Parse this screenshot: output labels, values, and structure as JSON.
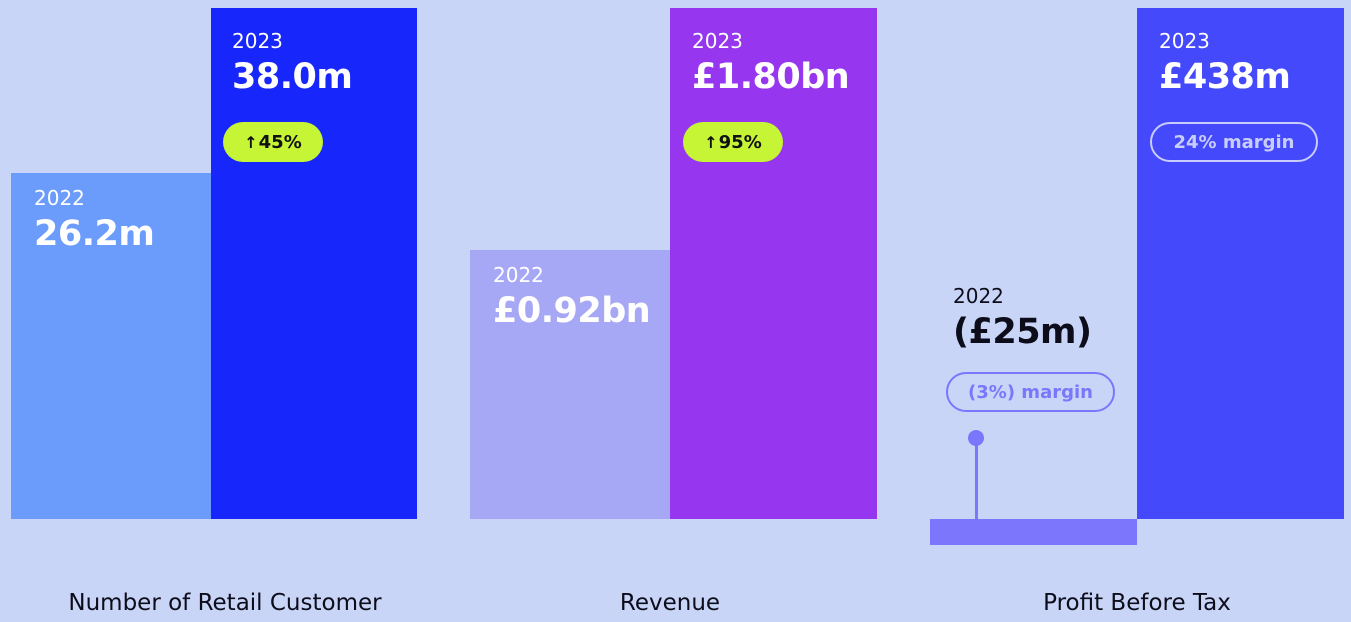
{
  "chart_data": [
    {
      "type": "bar",
      "xlabel": "Number of Retail Customer",
      "categories": [
        "2022",
        "2023"
      ],
      "values": [
        26.2,
        38.0
      ],
      "value_labels": [
        "26.2m",
        "38.0m"
      ],
      "change_badge": "45%",
      "colors": [
        "#6b9cfc",
        "#1726fa"
      ]
    },
    {
      "type": "bar",
      "xlabel": "Revenue",
      "categories": [
        "2022",
        "2023"
      ],
      "values": [
        0.92,
        1.8
      ],
      "value_labels": [
        "£0.92bn",
        "£1.80bn"
      ],
      "change_badge": "95%",
      "colors": [
        "#a7a8f5",
        "#9637ef"
      ]
    },
    {
      "type": "bar",
      "xlabel": "Profit Before Tax",
      "categories": [
        "2022",
        "2023"
      ],
      "values": [
        -25,
        438
      ],
      "value_labels": [
        "(£25m)",
        "£438m"
      ],
      "margin_labels": [
        "(3%) margin",
        "24% margin"
      ],
      "colors": [
        "#7b76fb",
        "#4449fb"
      ]
    }
  ],
  "icons": {
    "badge_arrow": "up-arrow-icon"
  }
}
